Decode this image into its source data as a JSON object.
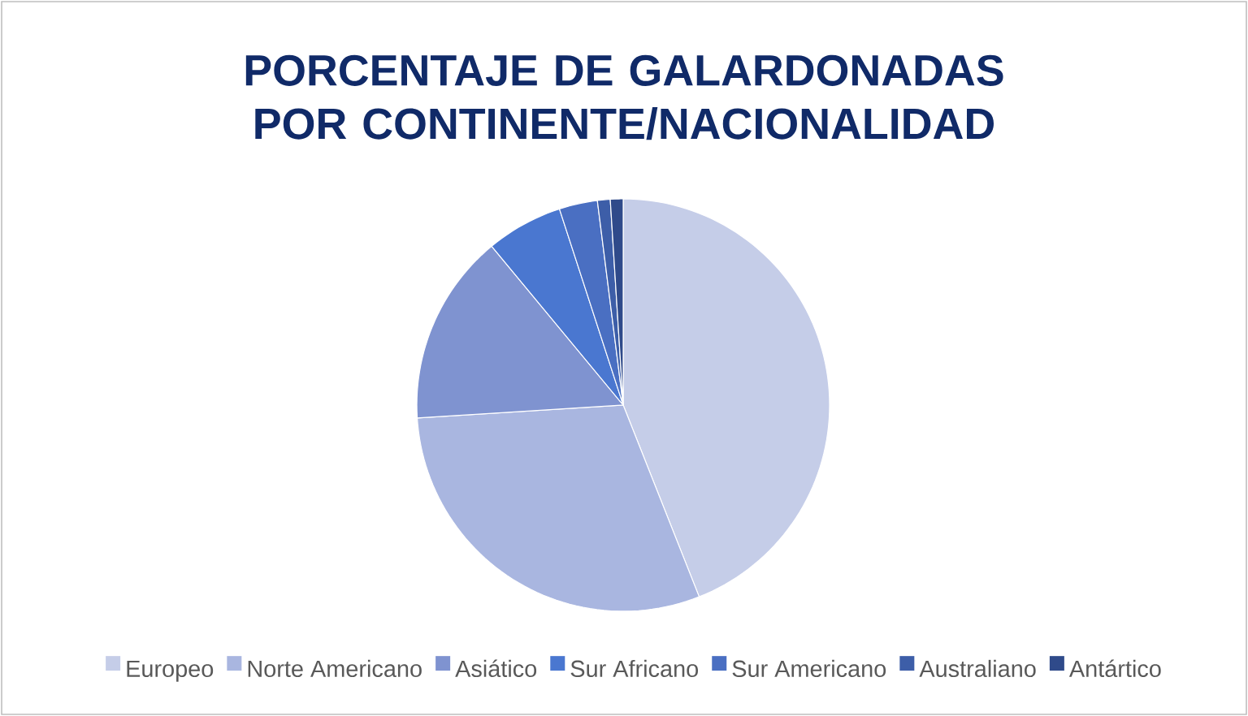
{
  "chart_data": {
    "type": "pie",
    "title": "PORCENTAJE DE GALARDONADAS POR CONTINENTE/NACIONALIDAD",
    "categories": [
      "Europeo",
      "Norte Americano",
      "Asiático",
      "Sur Africano",
      "Sur Americano",
      "Australiano",
      "Antártico"
    ],
    "values": [
      44,
      30,
      15,
      6,
      3,
      1,
      1
    ],
    "colors": [
      "#c5cde8",
      "#a9b6e0",
      "#7f93d0",
      "#4a77d0",
      "#4a6fc2",
      "#3d5ea8",
      "#2f4a8a"
    ],
    "legend": "bottom"
  }
}
